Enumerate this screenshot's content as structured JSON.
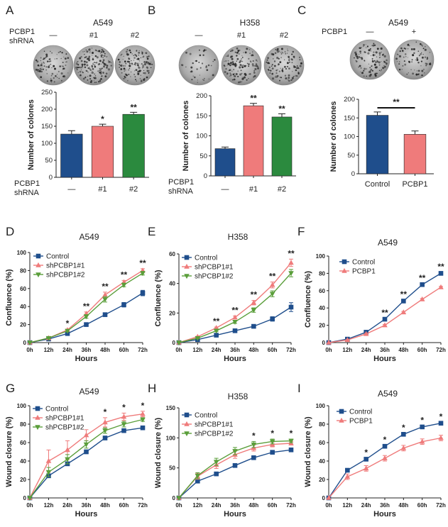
{
  "chart_data": [
    {
      "panel": "A",
      "type": "bar",
      "title": "A549",
      "top_labels": {
        "row1": "PCBP1",
        "row2": "shRNA",
        "cols": [
          "—",
          "#1",
          "#2"
        ]
      },
      "categories": [
        "—",
        "#1",
        "#2"
      ],
      "cat_row_labels": [
        "PCBP1",
        "shRNA"
      ],
      "values": [
        127,
        150,
        185
      ],
      "errors": [
        10,
        6,
        6
      ],
      "colors": [
        "#1f4e8c",
        "#ef7b7b",
        "#2b8a3e"
      ],
      "significance": [
        "",
        "*",
        "**"
      ],
      "ylabel": "Number of colones",
      "ylim": [
        0,
        250
      ],
      "yticks": [
        0,
        50,
        100,
        150,
        200,
        250
      ]
    },
    {
      "panel": "B",
      "type": "bar",
      "title": "H358",
      "top_labels": {
        "row1": "",
        "row2": "",
        "cols": [
          "—",
          "#1",
          "#2"
        ]
      },
      "categories": [
        "—",
        "#1",
        "#2"
      ],
      "cat_row_labels": [
        "PCBP1",
        "shRNA"
      ],
      "values": [
        68,
        175,
        147
      ],
      "errors": [
        4,
        6,
        8
      ],
      "colors": [
        "#1f4e8c",
        "#ef7b7b",
        "#2b8a3e"
      ],
      "significance": [
        "",
        "**",
        "**"
      ],
      "ylabel": "Number of colones",
      "ylim": [
        0,
        200
      ],
      "yticks": [
        0,
        50,
        100,
        150,
        200
      ]
    },
    {
      "panel": "C",
      "type": "bar",
      "title": "A549",
      "top_labels": {
        "row1": "PCBP1",
        "row2": "",
        "cols": [
          "—",
          "+"
        ]
      },
      "categories": [
        "Control",
        "PCBP1"
      ],
      "cat_row_labels": [],
      "values": [
        157,
        106
      ],
      "errors": [
        9,
        9
      ],
      "colors": [
        "#1f4e8c",
        "#ef7b7b"
      ],
      "significance_bracket": "**",
      "ylabel": "Number of colones",
      "ylim": [
        0,
        200
      ],
      "yticks": [
        0,
        50,
        100,
        150,
        200
      ]
    },
    {
      "panel": "D",
      "type": "line",
      "title": "A549",
      "x": [
        "0h",
        "12h",
        "24h",
        "36h",
        "48h",
        "60h",
        "72h"
      ],
      "series": [
        {
          "name": "Control",
          "color": "#1f4e8c",
          "marker": "square",
          "values": [
            0,
            4,
            10,
            20,
            31,
            42,
            55
          ],
          "errors": [
            0,
            0.5,
            1,
            1,
            1.5,
            2.5,
            3
          ]
        },
        {
          "name": "shPCBP1#1",
          "color": "#ef7b7b",
          "marker": "triangle-up",
          "values": [
            0,
            5,
            14,
            32,
            53,
            67,
            80
          ],
          "errors": [
            0,
            0.5,
            1,
            2,
            3,
            2,
            2
          ]
        },
        {
          "name": "shPCBP1#2",
          "color": "#5a9e3a",
          "marker": "triangle-down",
          "values": [
            0,
            5,
            13,
            29,
            48,
            64,
            77
          ],
          "errors": [
            0,
            0.5,
            1,
            2,
            3,
            2,
            2
          ]
        }
      ],
      "significance": [
        "",
        "",
        "*",
        "**",
        "**",
        "**",
        "**"
      ],
      "ylabel": "Confluence (%)",
      "xlabel": "Hours",
      "ylim": [
        0,
        100
      ],
      "yticks": [
        0,
        20,
        40,
        60,
        80,
        100
      ]
    },
    {
      "panel": "E",
      "type": "line",
      "title": "H358",
      "x": [
        "0h",
        "12h",
        "24h",
        "36h",
        "48h",
        "60h",
        "72h"
      ],
      "series": [
        {
          "name": "Control",
          "color": "#1f4e8c",
          "marker": "square",
          "values": [
            0,
            2,
            5,
            8,
            11,
            16,
            24
          ],
          "errors": [
            0,
            0.3,
            0.5,
            0.8,
            1,
            1.5,
            3
          ]
        },
        {
          "name": "shPCBP1#1",
          "color": "#ef7b7b",
          "marker": "triangle-up",
          "values": [
            0,
            4,
            10,
            17,
            27,
            39,
            54
          ],
          "errors": [
            0,
            0.3,
            0.5,
            1,
            1.5,
            2,
            2.5
          ]
        },
        {
          "name": "shPCBP1#2",
          "color": "#5a9e3a",
          "marker": "triangle-down",
          "values": [
            0,
            3,
            8,
            14,
            22,
            33,
            47
          ],
          "errors": [
            0,
            0.3,
            0.5,
            1,
            1.5,
            2,
            2.5
          ]
        }
      ],
      "significance": [
        "",
        "",
        "**",
        "**",
        "**",
        "**",
        "**"
      ],
      "ylabel": "Confluence (%)",
      "xlabel": "Hours",
      "ylim": [
        0,
        60
      ],
      "yticks": [
        0,
        20,
        40,
        60
      ]
    },
    {
      "panel": "F",
      "type": "line",
      "title": "A549",
      "x": [
        "0h",
        "12h",
        "24h",
        "36h",
        "48h",
        "60h",
        "72h"
      ],
      "series": [
        {
          "name": "Control",
          "color": "#1f4e8c",
          "marker": "square",
          "values": [
            0,
            4,
            12,
            27,
            48,
            67,
            80
          ],
          "errors": [
            0,
            0.3,
            0.5,
            1,
            1,
            1,
            1
          ]
        },
        {
          "name": "PCBP1",
          "color": "#ef7b7b",
          "marker": "triangle-up",
          "values": [
            0,
            3,
            10,
            20,
            35,
            50,
            64
          ],
          "errors": [
            0,
            0.3,
            0.5,
            1,
            1,
            1,
            1
          ]
        }
      ],
      "significance": [
        "",
        "",
        "",
        "**",
        "**",
        "**",
        "**"
      ],
      "ylabel": "Confluence (%)",
      "xlabel": "Hours",
      "ylim": [
        0,
        100
      ],
      "yticks": [
        0,
        20,
        40,
        60,
        80,
        100
      ]
    },
    {
      "panel": "G",
      "type": "line",
      "title": "A549",
      "x": [
        "0h",
        "12h",
        "24h",
        "36h",
        "48h",
        "60h",
        "72h"
      ],
      "series": [
        {
          "name": "Control",
          "color": "#1f4e8c",
          "marker": "square",
          "values": [
            0,
            24,
            37,
            50,
            65,
            73,
            76
          ],
          "errors": [
            0,
            2,
            2,
            2,
            2,
            2,
            2
          ]
        },
        {
          "name": "shPCBP1#1",
          "color": "#ef7b7b",
          "marker": "triangle-up",
          "values": [
            0,
            40,
            52,
            68,
            82,
            88,
            91
          ],
          "errors": [
            0,
            12,
            10,
            6,
            5,
            4,
            3
          ]
        },
        {
          "name": "shPCBP1#2",
          "color": "#5a9e3a",
          "marker": "triangle-down",
          "values": [
            0,
            28,
            42,
            58,
            73,
            80,
            85
          ],
          "errors": [
            0,
            5,
            5,
            4,
            3,
            3,
            2
          ]
        }
      ],
      "significance": [
        "",
        "",
        "",
        "",
        "*",
        "*",
        "*"
      ],
      "ylabel": "Wound closure (%)",
      "xlabel": "Hours",
      "ylim": [
        0,
        100
      ],
      "yticks": [
        0,
        20,
        40,
        60,
        80,
        100
      ]
    },
    {
      "panel": "H",
      "type": "line",
      "title": "H358",
      "x": [
        "0h",
        "12h",
        "24h",
        "36h",
        "48h",
        "60h",
        "72h"
      ],
      "series": [
        {
          "name": "Control",
          "color": "#1f4e8c",
          "marker": "square",
          "values": [
            0,
            28,
            40,
            54,
            67,
            76,
            80
          ],
          "errors": [
            0,
            2,
            2,
            2,
            2,
            2,
            2
          ]
        },
        {
          "name": "shPCBP1#1",
          "color": "#ef7b7b",
          "marker": "triangle-up",
          "values": [
            0,
            36,
            55,
            72,
            83,
            89,
            91
          ],
          "errors": [
            0,
            5,
            6,
            6,
            5,
            4,
            3
          ]
        },
        {
          "name": "shPCBP1#2",
          "color": "#5a9e3a",
          "marker": "triangle-down",
          "values": [
            0,
            37,
            60,
            78,
            89,
            94,
            95
          ],
          "errors": [
            0,
            5,
            6,
            6,
            5,
            4,
            3
          ]
        }
      ],
      "significance": [
        "",
        "",
        "",
        "",
        "*",
        "*",
        "*"
      ],
      "ylabel": "Wound closure (%)",
      "xlabel": "Hours",
      "ylim": [
        0,
        150
      ],
      "yticks": [
        0,
        50,
        100,
        150
      ]
    },
    {
      "panel": "I",
      "type": "line",
      "title": "A549",
      "x": [
        "0h",
        "12h",
        "24h",
        "36h",
        "48h",
        "60h",
        "72h"
      ],
      "series": [
        {
          "name": "Control",
          "color": "#1f4e8c",
          "marker": "square",
          "values": [
            0,
            30,
            42,
            56,
            69,
            77,
            81
          ],
          "errors": [
            0,
            1,
            1,
            1,
            1,
            1,
            1
          ]
        },
        {
          "name": "PCBP1",
          "color": "#ef7b7b",
          "marker": "triangle-up",
          "values": [
            0,
            23,
            32,
            43,
            54,
            61,
            65
          ],
          "errors": [
            0,
            3,
            3,
            3,
            3,
            3,
            3
          ]
        }
      ],
      "significance": [
        "",
        "",
        "*",
        "*",
        "*",
        "*",
        "*"
      ],
      "ylabel": "Wound closure (%)",
      "xlabel": "Hours",
      "ylim": [
        0,
        100
      ],
      "yticks": [
        0,
        20,
        40,
        60,
        80,
        100
      ]
    }
  ]
}
